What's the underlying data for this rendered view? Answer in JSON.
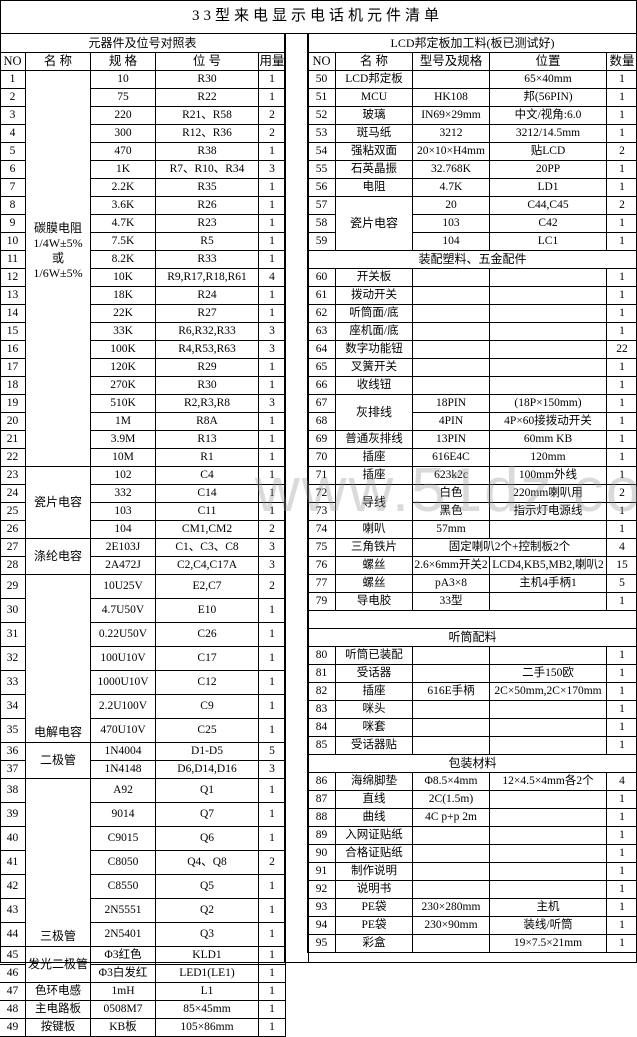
{
  "title": "33型来电显示电话机元件清单",
  "watermark": "www.51dz.com",
  "left": {
    "section_title": "元器件及位号对照表",
    "headers": [
      "NO",
      "名  称",
      "规 格",
      "位   号",
      "用量"
    ],
    "groups": [
      {
        "name": "碳膜电阻\n1/4W±5%\n或\n1/6W±5%",
        "items": [
          {
            "no": "1",
            "spec": "10",
            "pos": "R30",
            "qty": "1"
          },
          {
            "no": "2",
            "spec": "75",
            "pos": "R22",
            "qty": "1"
          },
          {
            "no": "3",
            "spec": "220",
            "pos": "R21、R58",
            "qty": "2"
          },
          {
            "no": "4",
            "spec": "300",
            "pos": "R12、R36",
            "qty": "2"
          },
          {
            "no": "5",
            "spec": "470",
            "pos": "R38",
            "qty": "1"
          },
          {
            "no": "6",
            "spec": "1K",
            "pos": "R7、R10、R34",
            "qty": "3"
          },
          {
            "no": "7",
            "spec": "2.2K",
            "pos": "R35",
            "qty": "1"
          },
          {
            "no": "8",
            "spec": "3.6K",
            "pos": "R26",
            "qty": "1"
          },
          {
            "no": "9",
            "spec": "4.7K",
            "pos": "R23",
            "qty": "1"
          },
          {
            "no": "10",
            "spec": "7.5K",
            "pos": "R5",
            "qty": "1"
          },
          {
            "no": "11",
            "spec": "8.2K",
            "pos": "R33",
            "qty": "1"
          },
          {
            "no": "12",
            "spec": "10K",
            "pos": "R9,R17,R18,R61",
            "qty": "4"
          },
          {
            "no": "13",
            "spec": "18K",
            "pos": "R24",
            "qty": "1"
          },
          {
            "no": "14",
            "spec": "22K",
            "pos": "R27",
            "qty": "1"
          },
          {
            "no": "15",
            "spec": "33K",
            "pos": "R6,R32,R33",
            "qty": "3"
          },
          {
            "no": "16",
            "spec": "100K",
            "pos": "R4,R53,R63",
            "qty": "3"
          },
          {
            "no": "17",
            "spec": "120K",
            "pos": "R29",
            "qty": "1"
          },
          {
            "no": "18",
            "spec": "270K",
            "pos": "R30",
            "qty": "1"
          },
          {
            "no": "19",
            "spec": "510K",
            "pos": "R2,R3,R8",
            "qty": "3"
          },
          {
            "no": "20",
            "spec": "1M",
            "pos": "R8A",
            "qty": "1"
          },
          {
            "no": "21",
            "spec": "3.9M",
            "pos": "R13",
            "qty": "1"
          },
          {
            "no": "22",
            "spec": "10M",
            "pos": "R1",
            "qty": "1"
          }
        ]
      },
      {
        "name": "瓷片电容",
        "items": [
          {
            "no": "23",
            "spec": "102",
            "pos": "C4",
            "qty": "1"
          },
          {
            "no": "24",
            "spec": "332",
            "pos": "C14",
            "qty": "1"
          },
          {
            "no": "25",
            "spec": "103",
            "pos": "C11",
            "qty": "1"
          },
          {
            "no": "26",
            "spec": "104",
            "pos": "CM1,CM2",
            "qty": "2"
          }
        ]
      },
      {
        "name": "涤纶电容",
        "items": [
          {
            "no": "27",
            "spec": "2E103J",
            "pos": "C1、C3、C8",
            "qty": "3"
          },
          {
            "no": "28",
            "spec": "2A472J",
            "pos": "C2,C4,C17A",
            "qty": "3"
          }
        ]
      },
      {
        "name": "电解电容",
        "items": [
          {
            "no": "29",
            "spec": "10U25V",
            "pos": "E2,C7",
            "qty": "2"
          },
          {
            "no": "30",
            "spec": "4.7U50V",
            "pos": "E10",
            "qty": "1"
          },
          {
            "no": "31",
            "spec": "0.22U50V",
            "pos": "C26",
            "qty": "1"
          },
          {
            "no": "32",
            "spec": "100U10V",
            "pos": "C17",
            "qty": "1"
          },
          {
            "no": "33",
            "spec": "1000U10V",
            "pos": "C12",
            "qty": "1"
          },
          {
            "no": "34",
            "spec": "2.2U100V",
            "pos": "C9",
            "qty": "1"
          },
          {
            "no": "35",
            "spec": "470U10V",
            "pos": "C25",
            "qty": "1"
          }
        ]
      },
      {
        "name": "二极管",
        "items": [
          {
            "no": "36",
            "spec": "1N4004",
            "pos": "D1-D5",
            "qty": "5"
          },
          {
            "no": "37",
            "spec": "1N4148",
            "pos": "D6,D14,D16",
            "qty": "3"
          }
        ]
      },
      {
        "name": "三极管",
        "items": [
          {
            "no": "38",
            "spec": "A92",
            "pos": "Q1",
            "qty": "1"
          },
          {
            "no": "39",
            "spec": "9014",
            "pos": "Q7",
            "qty": "1"
          },
          {
            "no": "40",
            "spec": "C9015",
            "pos": "Q6",
            "qty": "1"
          },
          {
            "no": "41",
            "spec": "C8050",
            "pos": "Q4、Q8",
            "qty": "2"
          },
          {
            "no": "42",
            "spec": "C8550",
            "pos": "Q5",
            "qty": "1"
          },
          {
            "no": "43",
            "spec": "2N5551",
            "pos": "Q2",
            "qty": "1"
          },
          {
            "no": "44",
            "spec": "2N5401",
            "pos": "Q3",
            "qty": "1"
          }
        ]
      },
      {
        "name": "发光二极管",
        "items": [
          {
            "no": "45",
            "spec": "Φ3红色",
            "pos": "KLD1",
            "qty": "1"
          },
          {
            "no": "46",
            "spec": "Φ3白发红",
            "pos": "LED1(LE1)",
            "qty": "1"
          }
        ]
      },
      {
        "name": "色环电感",
        "items": [
          {
            "no": "47",
            "spec": "1mH",
            "pos": "L1",
            "qty": "1"
          }
        ]
      },
      {
        "name": "主电路板",
        "items": [
          {
            "no": "48",
            "spec": "0508M7",
            "pos": "85×45mm",
            "qty": "1"
          }
        ]
      },
      {
        "name": "按键板",
        "items": [
          {
            "no": "49",
            "spec": "KB板",
            "pos": "105×86mm",
            "qty": "1"
          }
        ]
      }
    ]
  },
  "right": {
    "section_title": "LCD邦定板加工料(板已测试好)",
    "headers": [
      "NO",
      "名  称",
      "型号及规格",
      "位置",
      "数量"
    ],
    "rows": [
      {
        "type": "group",
        "name": "LCD邦定板",
        "items": [
          {
            "no": "50",
            "spec": "",
            "pos": "65×40mm",
            "qty": "1"
          }
        ]
      },
      {
        "type": "group",
        "name": "MCU",
        "items": [
          {
            "no": "51",
            "spec": "HK108",
            "pos": "邦(56PIN)",
            "qty": "1"
          }
        ]
      },
      {
        "type": "group",
        "name": "玻璃",
        "items": [
          {
            "no": "52",
            "spec": "IN69×29mm",
            "pos": "中文/视角:6.0",
            "qty": "1"
          }
        ]
      },
      {
        "type": "group",
        "name": "斑马纸",
        "items": [
          {
            "no": "53",
            "spec": "3212",
            "pos": "3212/14.5mm",
            "qty": "1"
          }
        ]
      },
      {
        "type": "group",
        "name": "强粘双面",
        "items": [
          {
            "no": "54",
            "spec": "20×10×H4mm",
            "pos": "贴LCD",
            "qty": "2"
          }
        ]
      },
      {
        "type": "group",
        "name": "石英晶振",
        "items": [
          {
            "no": "55",
            "spec": "32.768K",
            "pos": "20PP",
            "qty": "1"
          }
        ]
      },
      {
        "type": "group",
        "name": "电阻",
        "items": [
          {
            "no": "56",
            "spec": "4.7K",
            "pos": "LD1",
            "qty": "1"
          }
        ]
      },
      {
        "type": "group",
        "name": "瓷片电容",
        "items": [
          {
            "no": "57",
            "spec": "20",
            "pos": "C44,C45",
            "qty": "2"
          },
          {
            "no": "58",
            "spec": "103",
            "pos": "C42",
            "qty": "1"
          },
          {
            "no": "59",
            "spec": "104",
            "pos": "LC1",
            "qty": "1"
          }
        ]
      },
      {
        "type": "section",
        "label": "装配塑料、五金配件"
      },
      {
        "type": "group",
        "name": "开关板",
        "items": [
          {
            "no": "60",
            "spec": "",
            "pos": "",
            "qty": "1"
          }
        ]
      },
      {
        "type": "group",
        "name": "拨动开关",
        "items": [
          {
            "no": "61",
            "spec": "",
            "pos": "",
            "qty": "1"
          }
        ]
      },
      {
        "type": "group",
        "name": "听筒面/底",
        "items": [
          {
            "no": "62",
            "spec": "",
            "pos": "",
            "qty": "1"
          }
        ]
      },
      {
        "type": "group",
        "name": "座机面/底",
        "items": [
          {
            "no": "63",
            "spec": "",
            "pos": "",
            "qty": "1"
          }
        ]
      },
      {
        "type": "group",
        "name": "数字功能钮",
        "items": [
          {
            "no": "64",
            "spec": "",
            "pos": "",
            "qty": "22"
          }
        ]
      },
      {
        "type": "group",
        "name": "叉簧开关",
        "items": [
          {
            "no": "65",
            "spec": "",
            "pos": "",
            "qty": "1"
          }
        ]
      },
      {
        "type": "group",
        "name": "收线钮",
        "items": [
          {
            "no": "66",
            "spec": "",
            "pos": "",
            "qty": "1"
          }
        ]
      },
      {
        "type": "group",
        "name": "灰排线",
        "items": [
          {
            "no": "67",
            "spec": "18PIN",
            "pos": "(18P×150mm)",
            "qty": "1"
          },
          {
            "no": "68",
            "spec": "4PIN",
            "pos": "4P×60接拨动开关",
            "qty": "1"
          }
        ]
      },
      {
        "type": "group",
        "name": "普通灰排线",
        "items": [
          {
            "no": "69",
            "spec": "13PIN",
            "pos": "60mm KB",
            "qty": "1"
          }
        ]
      },
      {
        "type": "group",
        "name": "插座",
        "items": [
          {
            "no": "70",
            "spec": "616E4C",
            "pos": "120mm",
            "qty": "1"
          }
        ]
      },
      {
        "type": "group",
        "name": "插座",
        "items": [
          {
            "no": "71",
            "spec": "623k2c",
            "pos": "100mm外线",
            "qty": "1"
          }
        ]
      },
      {
        "type": "group",
        "name": "导线",
        "items": [
          {
            "no": "72",
            "spec": "白色",
            "pos": "220mm喇叭用",
            "qty": "2"
          },
          {
            "no": "73",
            "spec": "黑色",
            "pos": "指示灯电源线",
            "qty": "1"
          }
        ]
      },
      {
        "type": "group",
        "name": "喇叭",
        "items": [
          {
            "no": "74",
            "spec": "57mm",
            "pos": "",
            "qty": "1"
          }
        ]
      },
      {
        "type": "merged",
        "no": "75",
        "name": "三角铁片",
        "text": "固定喇叭2个+控制板2个",
        "qty": "4"
      },
      {
        "type": "group",
        "name": "螺丝",
        "items": [
          {
            "no": "76",
            "spec": "2.6×6mm开关2",
            "pos": "LCD4,KB5,MB2,喇叭2",
            "qty": "15"
          }
        ]
      },
      {
        "type": "group",
        "name": "螺丝",
        "items": [
          {
            "no": "77",
            "spec": "pA3×8",
            "pos": "主机4手柄1",
            "qty": "5"
          }
        ]
      },
      {
        "type": "group",
        "name": "导电胶",
        "items": [
          {
            "no": "79",
            "spec": "33型",
            "pos": "",
            "qty": "1"
          }
        ]
      },
      {
        "type": "blank"
      },
      {
        "type": "section",
        "label": "听筒配料"
      },
      {
        "type": "group",
        "name": "听筒已装配",
        "items": [
          {
            "no": "80",
            "spec": "",
            "pos": "",
            "qty": "1"
          }
        ]
      },
      {
        "type": "group",
        "name": "受话器",
        "items": [
          {
            "no": "81",
            "spec": "",
            "pos": "二手150欧",
            "qty": "1"
          }
        ]
      },
      {
        "type": "group",
        "name": "插座",
        "items": [
          {
            "no": "82",
            "spec": "616E手柄",
            "pos": "2C×50mm,2C×170mm",
            "qty": "1"
          }
        ]
      },
      {
        "type": "group",
        "name": "咪头",
        "items": [
          {
            "no": "83",
            "spec": "",
            "pos": "",
            "qty": "1"
          }
        ]
      },
      {
        "type": "group",
        "name": "咪套",
        "items": [
          {
            "no": "84",
            "spec": "",
            "pos": "",
            "qty": "1"
          }
        ]
      },
      {
        "type": "group",
        "name": "受话器贴",
        "items": [
          {
            "no": "85",
            "spec": "",
            "pos": "",
            "qty": "1"
          }
        ]
      },
      {
        "type": "section",
        "label": "包装材料"
      },
      {
        "type": "group",
        "name": "海绵脚垫",
        "items": [
          {
            "no": "86",
            "spec": "Φ8.5×4mm",
            "pos": "12×4.5×4mm各2个",
            "qty": "4"
          }
        ]
      },
      {
        "type": "group",
        "name": "直线",
        "items": [
          {
            "no": "87",
            "spec": "2C(1.5m)",
            "pos": "",
            "qty": "1"
          }
        ]
      },
      {
        "type": "group",
        "name": "曲线",
        "items": [
          {
            "no": "88",
            "spec": "4C  p+p 2m",
            "pos": "",
            "qty": "1"
          }
        ]
      },
      {
        "type": "group",
        "name": "入网证贴纸",
        "items": [
          {
            "no": "89",
            "spec": "",
            "pos": "",
            "qty": "1"
          }
        ]
      },
      {
        "type": "group",
        "name": "合格证贴纸",
        "items": [
          {
            "no": "90",
            "spec": "",
            "pos": "",
            "qty": "1"
          }
        ]
      },
      {
        "type": "group",
        "name": "制作说明",
        "items": [
          {
            "no": "91",
            "spec": "",
            "pos": "",
            "qty": "1"
          }
        ]
      },
      {
        "type": "group",
        "name": "说明书",
        "items": [
          {
            "no": "92",
            "spec": "",
            "pos": "",
            "qty": "1"
          }
        ]
      },
      {
        "type": "group",
        "name": "PE袋",
        "items": [
          {
            "no": "93",
            "spec": "230×280mm",
            "pos": "主机",
            "qty": "1"
          }
        ]
      },
      {
        "type": "group",
        "name": "PE袋",
        "items": [
          {
            "no": "94",
            "spec": "230×90mm",
            "pos": "装线/听筒",
            "qty": "1"
          }
        ]
      },
      {
        "type": "group",
        "name": "彩盒",
        "items": [
          {
            "no": "95",
            "spec": "",
            "pos": "19×7.5×21mm",
            "qty": "1"
          }
        ]
      }
    ]
  }
}
